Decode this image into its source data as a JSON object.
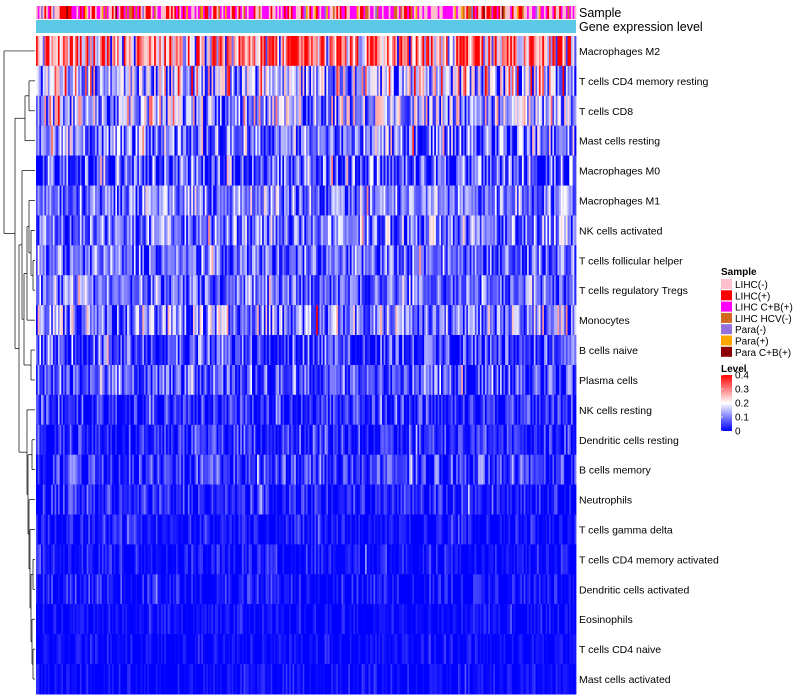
{
  "chart_data": {
    "type": "heatmap",
    "annotation_labels": {
      "sample": "Sample",
      "gene_expression_level": "Gene expression level"
    },
    "rows": [
      {
        "label": "Macrophages M2",
        "mean": 0.27,
        "spread": 0.12
      },
      {
        "label": "T cells CD4 memory resting",
        "mean": 0.15,
        "spread": 0.1
      },
      {
        "label": "T cells CD8",
        "mean": 0.14,
        "spread": 0.09
      },
      {
        "label": "Mast cells resting",
        "mean": 0.09,
        "spread": 0.08
      },
      {
        "label": "Macrophages M0",
        "mean": 0.06,
        "spread": 0.09
      },
      {
        "label": "Macrophages M1",
        "mean": 0.1,
        "spread": 0.06
      },
      {
        "label": "NK cells activated",
        "mean": 0.09,
        "spread": 0.07
      },
      {
        "label": "T cells follicular helper",
        "mean": 0.08,
        "spread": 0.06
      },
      {
        "label": "T cells regulatory  Tregs",
        "mean": 0.08,
        "spread": 0.06
      },
      {
        "label": "Monocytes",
        "mean": 0.11,
        "spread": 0.08
      },
      {
        "label": "B cells naive",
        "mean": 0.05,
        "spread": 0.06
      },
      {
        "label": "Plasma cells",
        "mean": 0.06,
        "spread": 0.06
      },
      {
        "label": "NK cells resting",
        "mean": 0.03,
        "spread": 0.05
      },
      {
        "label": "Dendritic cells resting",
        "mean": 0.03,
        "spread": 0.04
      },
      {
        "label": "B cells memory",
        "mean": 0.04,
        "spread": 0.05
      },
      {
        "label": "Neutrophils",
        "mean": 0.02,
        "spread": 0.04
      },
      {
        "label": "T cells gamma delta",
        "mean": 0.01,
        "spread": 0.03
      },
      {
        "label": "T cells CD4 memory activated",
        "mean": 0.01,
        "spread": 0.03
      },
      {
        "label": "Dendritic cells activated",
        "mean": 0.01,
        "spread": 0.03
      },
      {
        "label": "Eosinophils",
        "mean": 0.005,
        "spread": 0.02
      },
      {
        "label": "T cells CD4 naive",
        "mean": 0.005,
        "spread": 0.02
      },
      {
        "label": "Mast cells activated",
        "mean": 0.005,
        "spread": 0.02
      }
    ],
    "n_samples": 320,
    "gene_expression_level_color": "#5bc8e6",
    "sample_legend": {
      "title": "Sample",
      "entries": [
        {
          "label": "LIHC(-)",
          "color": "#ffc0cb"
        },
        {
          "label": "LIHC(+)",
          "color": "#ff0000"
        },
        {
          "label": "LIHC C+B(+)",
          "color": "#ff00ff"
        },
        {
          "label": "LIHC HCV(-)",
          "color": "#d2691e"
        },
        {
          "label": "Para(-)",
          "color": "#9370db"
        },
        {
          "label": "Para(+)",
          "color": "#ffa500"
        },
        {
          "label": "Para C+B(+)",
          "color": "#8b0000"
        }
      ],
      "weights": [
        0.3,
        0.18,
        0.32,
        0.08,
        0.05,
        0.04,
        0.03
      ]
    },
    "level_legend": {
      "title": "Level",
      "ticks": [
        "0.4",
        "0.3",
        "0.2",
        "0.1",
        "0"
      ],
      "tick_values": [
        0.4,
        0.3,
        0.2,
        0.1,
        0
      ],
      "range": [
        0,
        0.4
      ],
      "colors": {
        "low": "#0000ff",
        "mid": "#ffffff",
        "high": "#ff0000"
      },
      "mid_value": 0.2
    }
  }
}
